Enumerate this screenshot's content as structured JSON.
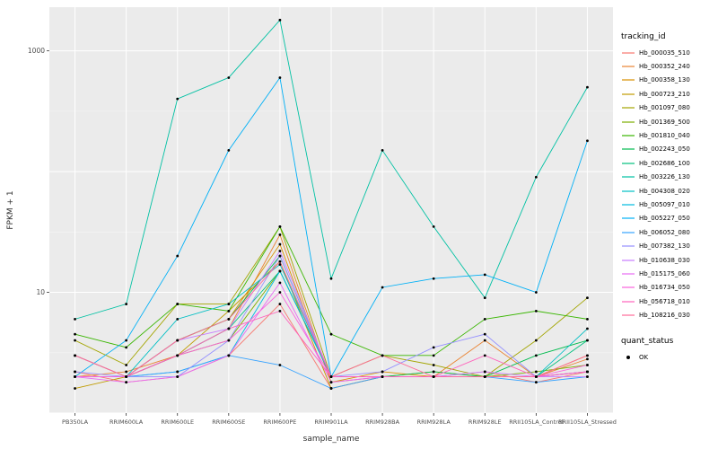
{
  "figure": {
    "panel_bg": "#EBEBEB",
    "grid_major": "#FFFFFF",
    "grid_minor": "#F6F6F6",
    "tick_color": "#333333",
    "tick_label_color": "#4D4D4D",
    "axis_title_color": "#303030"
  },
  "legend": {
    "tracking_title": "tracking_id",
    "quant_title": "quant_status",
    "quant_items": [
      {
        "label": "OK",
        "color": "#000000",
        "shape": "point"
      }
    ]
  },
  "chart_data": {
    "type": "line",
    "title": "",
    "xlabel": "sample_name",
    "ylabel": "FPKM + 1",
    "y_scale": "log10",
    "ylim": [
      1,
      2300
    ],
    "y_ticks": [
      10,
      1000
    ],
    "y_major": [
      1,
      10,
      100,
      1000
    ],
    "y_minor": [
      3.162,
      31.62,
      316.2
    ],
    "grid": true,
    "legend_position": "right",
    "point_color": "#000000",
    "categories": [
      "PB350LA",
      "RRIM600LA",
      "RRIM600LE",
      "RRIM600SE",
      "RRIM600PE",
      "RRIM901LA",
      "RRIM928BA",
      "RRIM928LA",
      "RRIM928LE",
      "RRII105LA_Control",
      "RRII105LA_Stressed"
    ],
    "series": [
      {
        "name": "Hb_000035_510",
        "color": "#F8766D",
        "values": [
          2.2,
          1.8,
          2.0,
          3.0,
          8,
          1.6,
          2.0,
          2.0,
          2.2,
          1.8,
          2.2
        ]
      },
      {
        "name": "Hb_000352_240",
        "color": "#EA8331",
        "values": [
          2.0,
          2.2,
          3.0,
          5.0,
          30,
          1.8,
          2.0,
          2.0,
          4.0,
          2.0,
          2.8
        ]
      },
      {
        "name": "Hb_000358_130",
        "color": "#D89000",
        "values": [
          2.0,
          2.0,
          4.0,
          6.0,
          25,
          1.8,
          2.2,
          2.0,
          2.0,
          2.0,
          3.0
        ]
      },
      {
        "name": "Hb_000723_210",
        "color": "#C09B00",
        "values": [
          1.6,
          2.0,
          3.0,
          7.0,
          18,
          1.6,
          2.0,
          2.2,
          2.0,
          2.0,
          2.2
        ]
      },
      {
        "name": "Hb_001097_080",
        "color": "#A3A500",
        "values": [
          4.0,
          2.5,
          8.0,
          8.0,
          35,
          2.0,
          3.0,
          2.5,
          2.0,
          4.0,
          9.0
        ]
      },
      {
        "name": "Hb_001369_500",
        "color": "#7CAE00",
        "values": [
          2.0,
          2.0,
          3.0,
          4.0,
          15,
          2.0,
          2.0,
          2.0,
          2.0,
          2.2,
          2.5
        ]
      },
      {
        "name": "Hb_001810_040",
        "color": "#39B600",
        "values": [
          4.5,
          3.5,
          8.0,
          7.0,
          35,
          4.5,
          3.0,
          3.0,
          6.0,
          7.0,
          6.0
        ]
      },
      {
        "name": "Hb_002243_050",
        "color": "#00BB4E",
        "values": [
          3.0,
          2.0,
          4.0,
          6.0,
          20,
          2.0,
          2.0,
          2.2,
          2.0,
          3.0,
          4.0
        ]
      },
      {
        "name": "Hb_002686_100",
        "color": "#00BF7D",
        "values": [
          2.0,
          2.0,
          3.0,
          5.0,
          15,
          2.0,
          2.0,
          2.0,
          2.0,
          2.0,
          4.0
        ]
      },
      {
        "name": "Hb_003226_130",
        "color": "#00C1A3",
        "values": [
          6,
          8,
          400,
          600,
          1800,
          13,
          150,
          35,
          9,
          90,
          500
        ]
      },
      {
        "name": "Hb_004308_020",
        "color": "#00BFC4",
        "values": [
          2.0,
          2.0,
          6.0,
          8.0,
          17,
          2.0,
          2.0,
          2.0,
          2.0,
          2.0,
          5.0
        ]
      },
      {
        "name": "Hb_005097_010",
        "color": "#00BAE0",
        "values": [
          2.0,
          2.0,
          2.2,
          3.0,
          15,
          2.0,
          2.0,
          2.0,
          2.0,
          2.0,
          2.2
        ]
      },
      {
        "name": "Hb_005227_050",
        "color": "#00B0F6",
        "values": [
          2.0,
          4.0,
          20,
          150,
          600,
          2.0,
          11,
          13,
          14,
          10,
          180
        ]
      },
      {
        "name": "Hb_006052_080",
        "color": "#35A2FF",
        "values": [
          2.0,
          2.0,
          2.2,
          3.0,
          2.5,
          1.6,
          2.0,
          2.0,
          2.0,
          1.8,
          2.0
        ]
      },
      {
        "name": "Hb_007382_130",
        "color": "#9590FF",
        "values": [
          2.2,
          2.0,
          2.0,
          4.0,
          20,
          2.0,
          2.2,
          3.5,
          4.5,
          2.0,
          2.2
        ]
      },
      {
        "name": "Hb_010638_030",
        "color": "#C77CFF",
        "values": [
          2.0,
          2.0,
          4.0,
          5.0,
          22,
          2.0,
          2.0,
          2.0,
          2.2,
          2.0,
          2.0
        ]
      },
      {
        "name": "Hb_015175_060",
        "color": "#E76BF3",
        "values": [
          2.0,
          1.8,
          2.0,
          3.0,
          12,
          1.8,
          2.0,
          2.0,
          2.0,
          2.0,
          2.2
        ]
      },
      {
        "name": "Hb_016734_050",
        "color": "#FA62DB",
        "values": [
          2.0,
          2.0,
          3.0,
          4.0,
          10,
          2.0,
          2.0,
          2.0,
          2.0,
          2.0,
          2.5
        ]
      },
      {
        "name": "Hb_056718_010",
        "color": "#FF62BC",
        "values": [
          3.0,
          2.0,
          3.0,
          5.0,
          7.0,
          2.0,
          2.0,
          2.0,
          3.0,
          2.0,
          2.2
        ]
      },
      {
        "name": "Hb_108216_030",
        "color": "#FF6A98",
        "values": [
          3.0,
          2.0,
          4.0,
          6.0,
          18,
          2.0,
          3.0,
          2.0,
          2.0,
          2.0,
          3.0
        ]
      }
    ]
  }
}
